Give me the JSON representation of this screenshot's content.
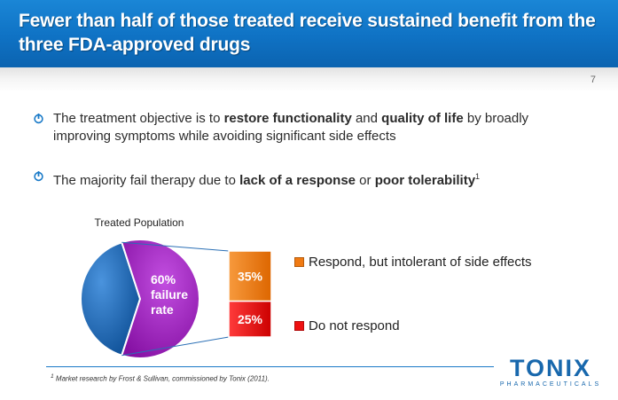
{
  "slide": {
    "title": "Fewer than half of those treated receive sustained benefit from the three FDA-approved drugs",
    "page_number": "7"
  },
  "bullets": [
    {
      "parts": [
        {
          "text": "The treatment objective is to ",
          "bold": false
        },
        {
          "text": "restore functionality",
          "bold": true
        },
        {
          "text": " and ",
          "bold": false
        },
        {
          "text": "quality of life",
          "bold": true
        },
        {
          "text": " by broadly improving symptoms while avoiding significant side effects",
          "bold": false
        }
      ]
    },
    {
      "parts": [
        {
          "text": "The majority fail therapy due to ",
          "bold": false
        },
        {
          "text": "lack of a response",
          "bold": true
        },
        {
          "text": " or ",
          "bold": false
        },
        {
          "text": "poor tolerability",
          "bold": true
        }
      ],
      "superscript": "1"
    }
  ],
  "chart_data": {
    "type": "pie",
    "title": "Treated Population",
    "slices": [
      {
        "label": "",
        "value": 40,
        "color": "#1565b8"
      },
      {
        "label": "60% failure rate",
        "value": 60,
        "color": "#a020c0"
      }
    ],
    "breakdown": {
      "type": "stacked-bar",
      "segments": [
        {
          "name": "Respond, but intolerant of side effects",
          "label": "35%",
          "value": 35,
          "color": "#f07a12"
        },
        {
          "name": "Do not respond",
          "label": "25%",
          "value": 25,
          "color": "#ee1111"
        }
      ]
    },
    "legend_position": "right"
  },
  "footnote": {
    "marker": "1",
    "text": " Market research by Frost & Sullivan, commissioned by Tonix (2011)."
  },
  "logo": {
    "word": "TONIX",
    "sub": "PHARMACEUTICALS"
  },
  "colors": {
    "header_blue": "#0f72c4",
    "accent_blue": "#1868ad"
  }
}
